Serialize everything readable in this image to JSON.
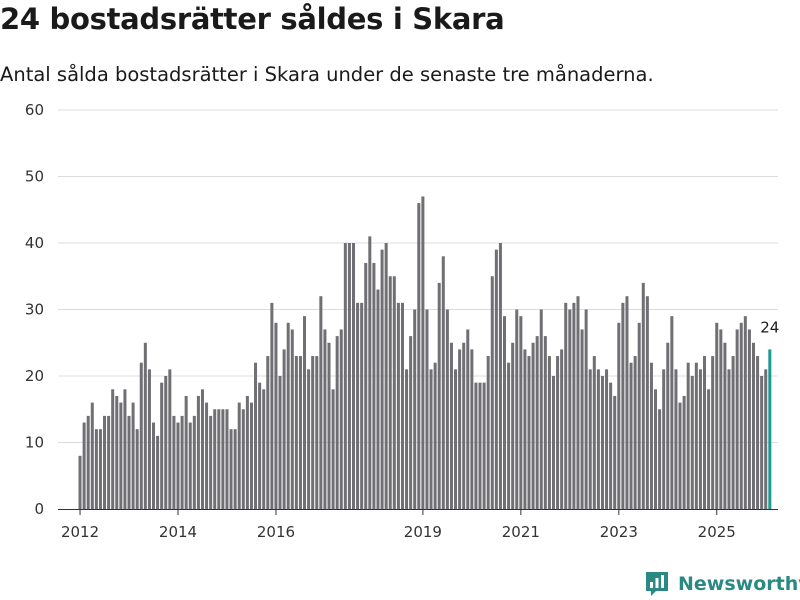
{
  "title": "24 bostadsrätter såldes i Skara",
  "subtitle": "Antal sålda bostadsrätter i Skara under de senaste tre månaderna.",
  "brand": {
    "name": "Newsworthy",
    "icon": "newsworthy-logo-icon"
  },
  "colors": {
    "bar": "#707074",
    "highlight": "#1f9a8e",
    "grid": "#dcdcdc",
    "axis": "#333333",
    "brand": "#2a8a83"
  },
  "chart_data": {
    "type": "bar",
    "title": "24 bostadsrätter såldes i Skara",
    "subtitle": "Antal sålda bostadsrätter i Skara under de senaste tre månaderna.",
    "xlabel": "",
    "ylabel": "",
    "ylim": [
      0,
      60
    ],
    "yticks": [
      0,
      10,
      20,
      30,
      40,
      50,
      60
    ],
    "xlim": [
      2011.55,
      2026.25
    ],
    "xticks": [
      {
        "label": "2012",
        "value": 2012.0
      },
      {
        "label": "2014",
        "value": 2014.0
      },
      {
        "label": "2016",
        "value": 2016.0
      },
      {
        "label": "2019",
        "value": 2019.0
      },
      {
        "label": "2021",
        "value": 2021.0
      },
      {
        "label": "2023",
        "value": 2023.0
      },
      {
        "label": "2025",
        "value": 2025.0
      }
    ],
    "x_start": 2012.0,
    "x_step": 0.08333,
    "grid": true,
    "highlight_last": true,
    "last_label": "24",
    "values": [
      8,
      13,
      14,
      16,
      12,
      12,
      14,
      14,
      18,
      17,
      16,
      18,
      14,
      16,
      12,
      22,
      25,
      21,
      13,
      11,
      19,
      20,
      21,
      14,
      13,
      14,
      17,
      13,
      14,
      17,
      18,
      16,
      14,
      15,
      15,
      15,
      15,
      12,
      12,
      16,
      15,
      17,
      16,
      22,
      19,
      18,
      23,
      31,
      28,
      20,
      24,
      28,
      27,
      23,
      23,
      29,
      21,
      23,
      23,
      32,
      27,
      25,
      18,
      26,
      27,
      40,
      40,
      40,
      31,
      31,
      37,
      41,
      37,
      33,
      39,
      40,
      35,
      35,
      31,
      31,
      21,
      26,
      30,
      46,
      47,
      30,
      21,
      22,
      34,
      38,
      30,
      25,
      21,
      24,
      25,
      27,
      24,
      19,
      19,
      19,
      23,
      35,
      39,
      40,
      29,
      22,
      25,
      30,
      29,
      24,
      23,
      25,
      26,
      30,
      26,
      23,
      20,
      23,
      24,
      31,
      30,
      31,
      32,
      27,
      30,
      21,
      23,
      21,
      20,
      21,
      19,
      17,
      28,
      31,
      32,
      22,
      23,
      28,
      34,
      32,
      22,
      18,
      15,
      21,
      25,
      29,
      21,
      16,
      17,
      22,
      20,
      22,
      21,
      23,
      18,
      23,
      28,
      27,
      25,
      21,
      23,
      27,
      28,
      29,
      27,
      25,
      23,
      20,
      21,
      24
    ]
  }
}
